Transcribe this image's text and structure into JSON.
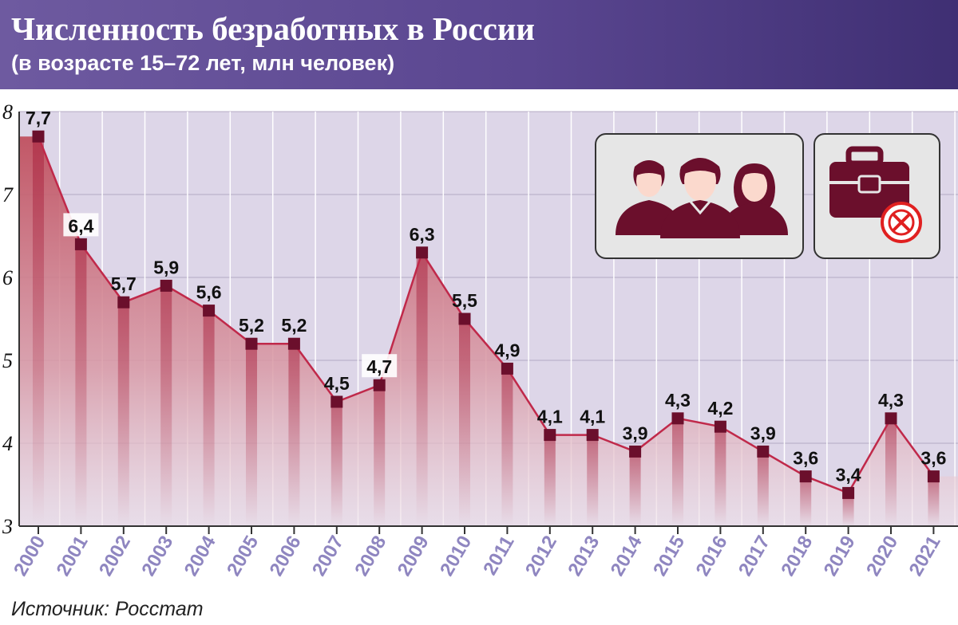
{
  "header": {
    "title": "Численность безработных в России",
    "subtitle": "(в возрасте 15–72 лет, млн человек)"
  },
  "source": "Источник: Росстат",
  "icons": [
    "people-group-icon",
    "briefcase-cancel-icon"
  ],
  "colors": {
    "header_start": "#6e5aa0",
    "header_end": "#3f2f73",
    "plot_background": "#ddd6e8",
    "line": "#c0294a",
    "marker": "#6b0f2c",
    "area_top": "#c0505f",
    "tick_label": "#8f86c0"
  },
  "chart_data": {
    "type": "area",
    "title": "Численность безработных в России",
    "subtitle": "(в возрасте 15–72 лет, млн человек)",
    "xlabel": "",
    "ylabel": "",
    "categories": [
      "2000",
      "2001",
      "2002",
      "2003",
      "2004",
      "2005",
      "2006",
      "2007",
      "2008",
      "2009",
      "2010",
      "2011",
      "2012",
      "2013",
      "2014",
      "2015",
      "2016",
      "2017",
      "2018",
      "2019",
      "2020",
      "2021"
    ],
    "values": [
      7.7,
      6.4,
      5.7,
      5.9,
      5.6,
      5.2,
      5.2,
      4.5,
      4.7,
      6.3,
      5.5,
      4.9,
      4.1,
      4.1,
      3.9,
      4.3,
      4.2,
      3.9,
      3.6,
      3.4,
      4.3,
      3.6
    ],
    "value_labels": [
      "7,7",
      "6,4",
      "5,7",
      "5,9",
      "5,6",
      "5,2",
      "5,2",
      "4,5",
      "4,7",
      "6,3",
      "5,5",
      "4,9",
      "4,1",
      "4,1",
      "3,9",
      "4,3",
      "4,2",
      "3,9",
      "3,6",
      "3,4",
      "4,3",
      "3,6"
    ],
    "highlighted_labels": [
      1,
      8
    ],
    "ylim": [
      3,
      8
    ],
    "yticks": [
      3,
      4,
      5,
      6,
      7,
      8
    ],
    "grid": true,
    "markers": "square"
  }
}
